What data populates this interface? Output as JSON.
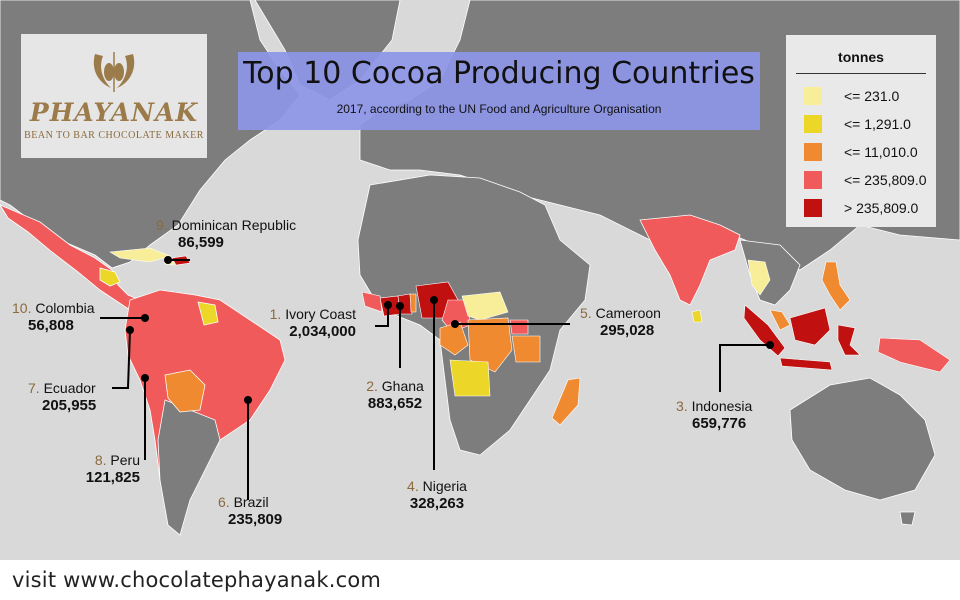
{
  "title": "Top 10 Cocoa Producing Countries",
  "subtitle": "2017, according to the UN Food and Agriculture Organisation",
  "logo": {
    "brand": "PHAYANAK",
    "tagline": "BEAN TO BAR CHOCOLATE MAKER"
  },
  "legend": {
    "title": "tonnes",
    "items": [
      {
        "label": "<= 231.0",
        "color": "#f8ee9a"
      },
      {
        "label": "<= 1,291.0",
        "color": "#ecd728"
      },
      {
        "label": "<= 11,010.0",
        "color": "#f08a30"
      },
      {
        "label": "<= 235,809.0",
        "color": "#f05a5a"
      },
      {
        "label": "> 235,809.0",
        "color": "#c01010"
      }
    ]
  },
  "countries": [
    {
      "rank": "1.",
      "name": "Ivory Coast",
      "value": "2,034,000"
    },
    {
      "rank": "2.",
      "name": "Ghana",
      "value": "883,652"
    },
    {
      "rank": "3.",
      "name": "Indonesia",
      "value": "659,776"
    },
    {
      "rank": "4.",
      "name": "Nigeria",
      "value": "328,263"
    },
    {
      "rank": "5.",
      "name": "Cameroon",
      "value": "295,028"
    },
    {
      "rank": "6.",
      "name": "Brazil",
      "value": "235,809"
    },
    {
      "rank": "7.",
      "name": "Ecuador",
      "value": "205,955"
    },
    {
      "rank": "8.",
      "name": "Peru",
      "value": "121,825"
    },
    {
      "rank": "9.",
      "name": "Dominican Republic",
      "value": "86,599"
    },
    {
      "rank": "10.",
      "name": "Colombia",
      "value": "56,808"
    }
  ],
  "colors": {
    "ocean": "#d9d9d9",
    "land": "#7d7d7d",
    "title_box": "#8d96e8"
  },
  "footer": "visit www.chocolatephayanak.com"
}
